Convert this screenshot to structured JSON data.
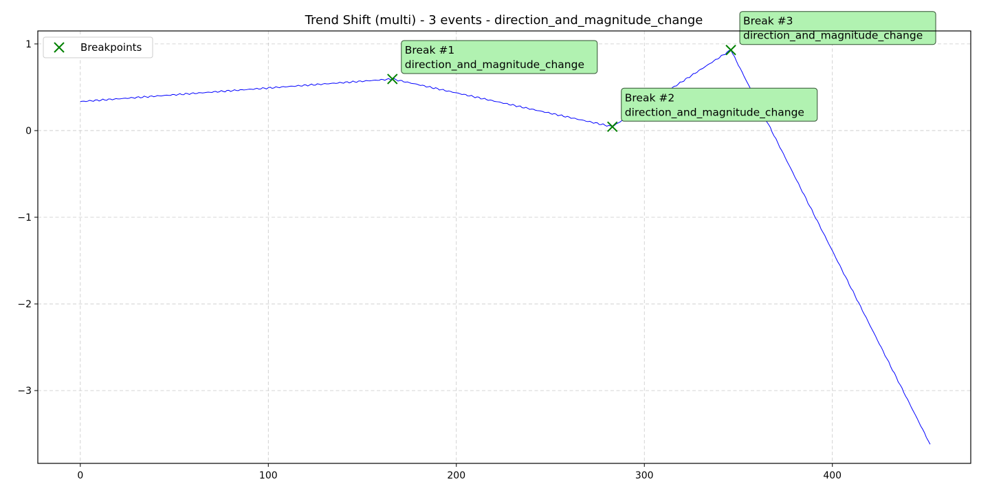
{
  "chart_data": {
    "type": "line",
    "title": "Trend Shift (multi) - 3 events - direction_and_magnitude_change",
    "xlabel": "",
    "ylabel": "",
    "xlim": [
      -22.6,
      473.6
    ],
    "ylim": [
      -3.84,
      1.15
    ],
    "x_ticks": [
      0,
      100,
      200,
      300,
      400
    ],
    "y_ticks": [
      1,
      0,
      -1,
      -2,
      -3
    ],
    "y_tick_labels": [
      "1",
      "0",
      "−1",
      "−2",
      "−3"
    ],
    "grid": true,
    "legend_position": "top-left",
    "series": [
      {
        "color": "#0000ff",
        "segments": [
          {
            "x0": 0,
            "y0": 0.335,
            "x1": 166,
            "y1": 0.595
          },
          {
            "x0": 166,
            "y0": 0.595,
            "x1": 283,
            "y1": 0.045
          },
          {
            "x0": 283,
            "y0": 0.045,
            "x1": 346,
            "y1": 0.93
          },
          {
            "x0": 346,
            "y0": 0.93,
            "x1": 452,
            "y1": -3.62
          }
        ]
      }
    ],
    "breakpoints": {
      "name": "Breakpoints",
      "color": "#008000",
      "points": [
        {
          "x": 166,
          "y": 0.595,
          "label_line1": "Break #1",
          "label_line2": "direction_and_magnitude_change"
        },
        {
          "x": 283,
          "y": 0.045,
          "label_line1": "Break #2",
          "label_line2": "direction_and_magnitude_change"
        },
        {
          "x": 346,
          "y": 0.93,
          "label_line1": "Break #3",
          "label_line2": "direction_and_magnitude_change"
        }
      ]
    },
    "annotation_box_color": "#b1f2b1"
  }
}
